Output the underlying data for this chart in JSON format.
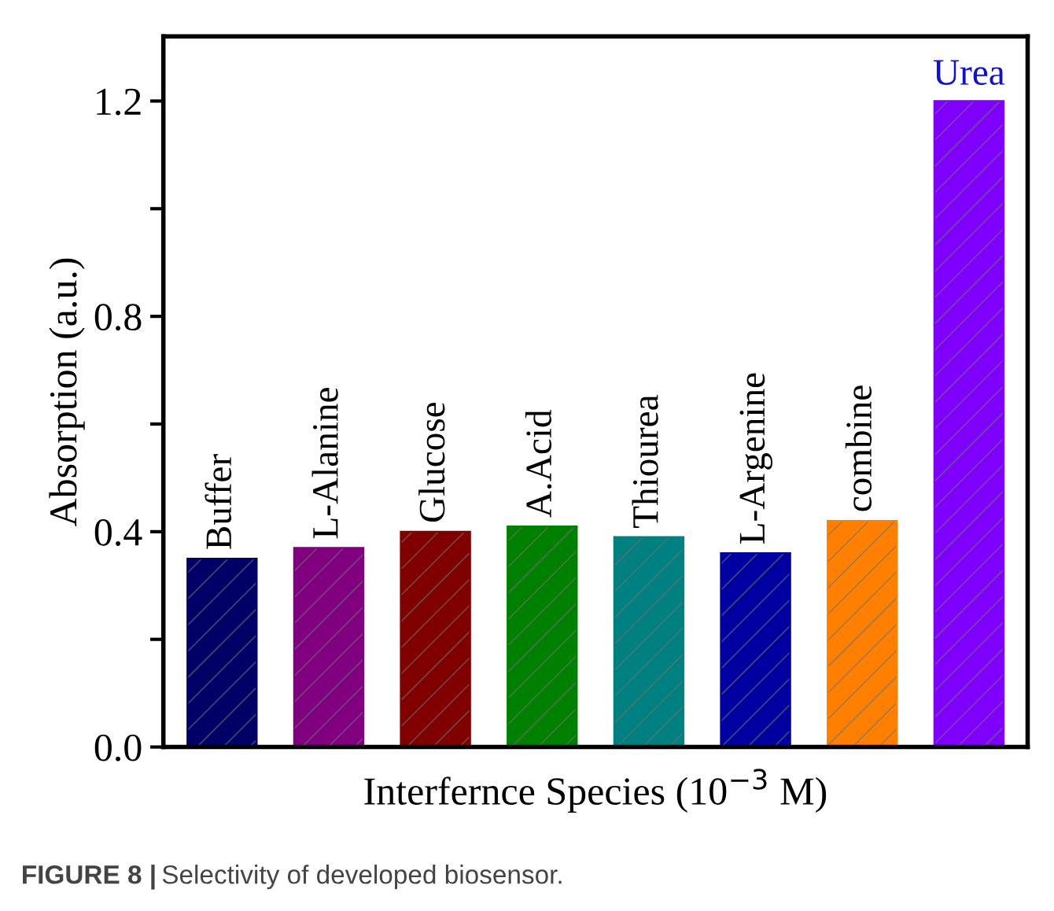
{
  "chart_data": {
    "type": "bar",
    "xlabel": "Interfernce Species (10$^{−3}$ M)",
    "ylabel": "Absorption (a.u.)",
    "categories": [
      "Buffer",
      "L-Alanine",
      "Glucose",
      "A.Acid",
      "Thiourea",
      "L-Argenine",
      "combine",
      "Urea"
    ],
    "values": [
      0.35,
      0.37,
      0.4,
      0.41,
      0.39,
      0.36,
      0.42,
      1.2
    ],
    "colors": [
      "#000066",
      "#800080",
      "#800000",
      "#008000",
      "#008080",
      "#0000a0",
      "#ff8000",
      "#8000ff"
    ],
    "ylim": [
      0,
      1.32
    ],
    "yticks": [
      {
        "value": 0,
        "label": "0.0"
      },
      {
        "value": 0.2,
        "label": null
      },
      {
        "value": 0.4,
        "label": "0.4"
      },
      {
        "value": 0.6,
        "label": null
      },
      {
        "value": 0.8,
        "label": "0.8"
      },
      {
        "value": 1.0,
        "label": null
      },
      {
        "value": 1.2,
        "label": "1.2"
      }
    ],
    "grid": false,
    "legend": false,
    "annotations": [
      "FIGURE 8 | Selectivity of developed biosensor."
    ]
  }
}
